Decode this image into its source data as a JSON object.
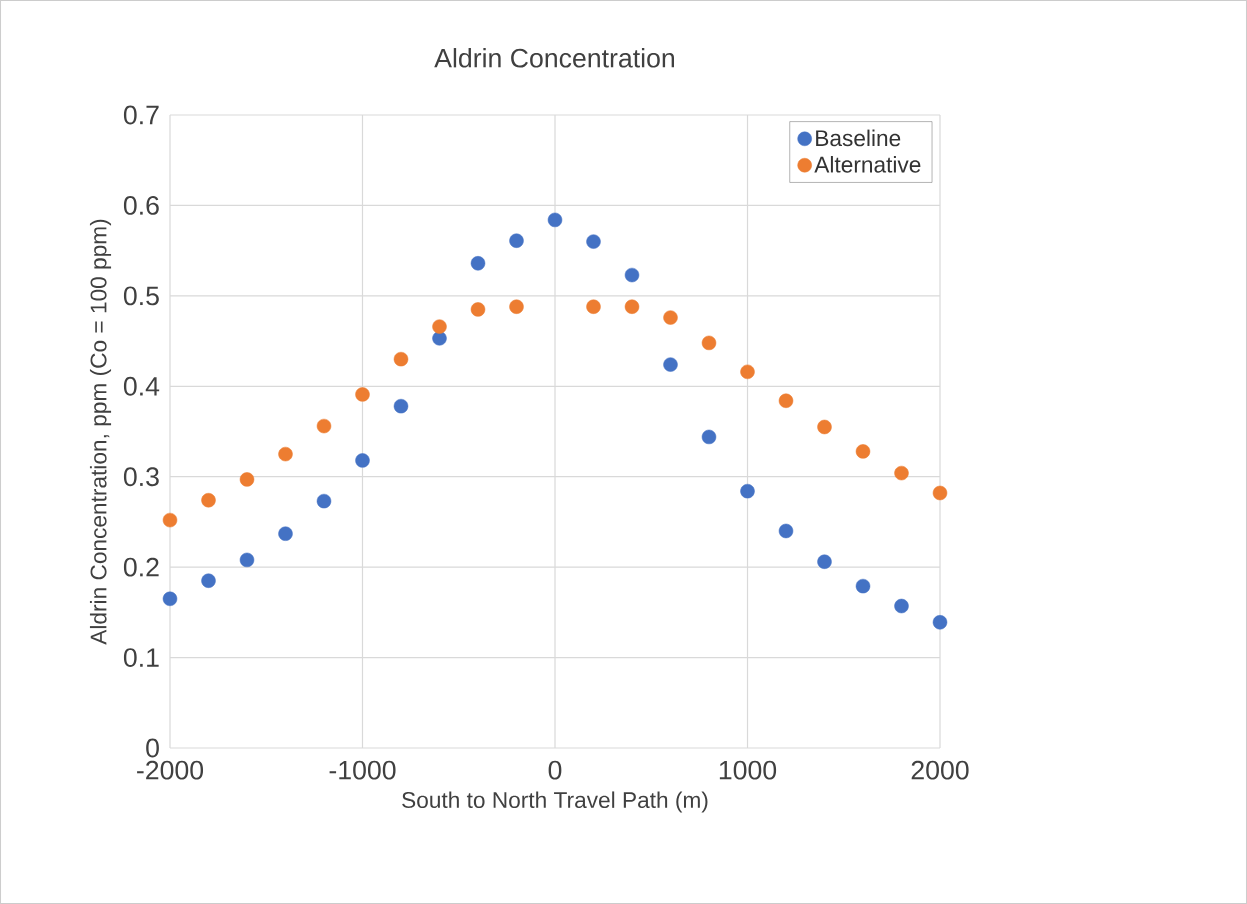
{
  "chart_data": {
    "type": "scatter",
    "title": "Aldrin Concentration",
    "xlabel": "South to North Travel Path (m)",
    "ylabel": "Aldrin Concentration, ppm (Co = 100 ppm)",
    "x": [
      -2000,
      -1800,
      -1600,
      -1400,
      -1200,
      -1000,
      -800,
      -600,
      -400,
      -200,
      0,
      200,
      400,
      600,
      800,
      1000,
      1200,
      1400,
      1600,
      1800,
      2000
    ],
    "series": [
      {
        "name": "Baseline",
        "color": "#4472c4",
        "values": [
          0.165,
          0.185,
          0.208,
          0.237,
          0.273,
          0.318,
          0.378,
          0.453,
          0.536,
          0.561,
          0.584,
          0.56,
          0.523,
          0.424,
          0.344,
          0.284,
          0.24,
          0.206,
          0.179,
          0.157,
          0.139
        ]
      },
      {
        "name": "Alternative",
        "color": "#ed7d31",
        "values": [
          0.252,
          0.274,
          0.297,
          0.325,
          0.356,
          0.391,
          0.43,
          0.466,
          0.485,
          0.488,
          null,
          0.488,
          0.488,
          0.476,
          0.448,
          0.416,
          0.384,
          0.355,
          0.328,
          0.304,
          0.282
        ]
      }
    ],
    "xlim": [
      -2000,
      2000
    ],
    "xticks": [
      -2000,
      -1000,
      0,
      1000,
      2000
    ],
    "ylim": [
      0,
      0.7
    ],
    "yticks": [
      0,
      0.1,
      0.2,
      0.3,
      0.4,
      0.5,
      0.6,
      0.7
    ],
    "grid": true,
    "legend": "top right",
    "marker": "circle"
  }
}
